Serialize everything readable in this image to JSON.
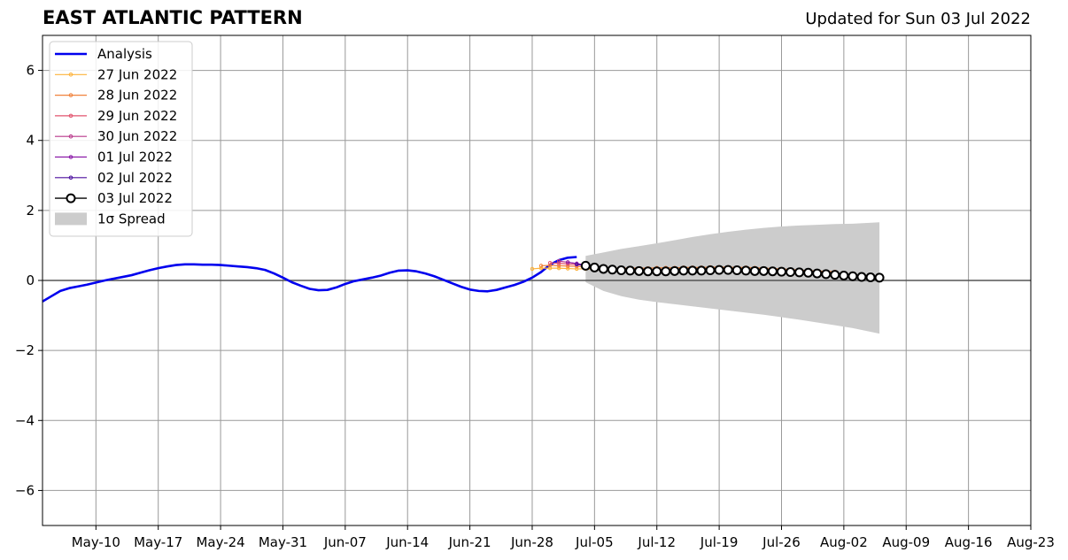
{
  "title": "EAST ATLANTIC PATTERN",
  "subtitle": "Updated for Sun 03 Jul 2022",
  "chart_data": {
    "type": "line",
    "title": "EAST ATLANTIC PATTERN",
    "xlabel": "",
    "ylabel": "",
    "xlim": [
      "2022-05-04",
      "2022-08-23"
    ],
    "ylim": [
      -7,
      7
    ],
    "grid": true,
    "legend_position": "top-left",
    "x_ticks": [
      "May-10",
      "May-17",
      "May-24",
      "May-31",
      "Jun-07",
      "Jun-14",
      "Jun-21",
      "Jun-28",
      "Jul-05",
      "Jul-12",
      "Jul-19",
      "Jul-26",
      "Aug-02",
      "Aug-09",
      "Aug-16",
      "Aug-23"
    ],
    "y_ticks": [
      -6,
      -4,
      -2,
      0,
      2,
      4,
      6
    ],
    "y_tick_labels": [
      "−6",
      "−4",
      "−2",
      "0",
      "2",
      "4",
      "6"
    ],
    "analysis": {
      "name": "Analysis",
      "color": "#0000ee",
      "x": [
        "2022-05-04",
        "2022-05-05",
        "2022-05-06",
        "2022-05-07",
        "2022-05-08",
        "2022-05-09",
        "2022-05-10",
        "2022-05-11",
        "2022-05-12",
        "2022-05-13",
        "2022-05-14",
        "2022-05-15",
        "2022-05-16",
        "2022-05-17",
        "2022-05-18",
        "2022-05-19",
        "2022-05-20",
        "2022-05-21",
        "2022-05-22",
        "2022-05-23",
        "2022-05-24",
        "2022-05-25",
        "2022-05-26",
        "2022-05-27",
        "2022-05-28",
        "2022-05-29",
        "2022-05-30",
        "2022-05-31",
        "2022-06-01",
        "2022-06-02",
        "2022-06-03",
        "2022-06-04",
        "2022-06-05",
        "2022-06-06",
        "2022-06-07",
        "2022-06-08",
        "2022-06-09",
        "2022-06-10",
        "2022-06-11",
        "2022-06-12",
        "2022-06-13",
        "2022-06-14",
        "2022-06-15",
        "2022-06-16",
        "2022-06-17",
        "2022-06-18",
        "2022-06-19",
        "2022-06-20",
        "2022-06-21",
        "2022-06-22",
        "2022-06-23",
        "2022-06-24",
        "2022-06-25",
        "2022-06-26",
        "2022-06-27",
        "2022-06-28",
        "2022-06-29",
        "2022-06-30",
        "2022-07-01",
        "2022-07-02",
        "2022-07-03"
      ],
      "y": [
        -0.6,
        -0.45,
        -0.3,
        -0.22,
        -0.17,
        -0.12,
        -0.06,
        0.0,
        0.05,
        0.1,
        0.15,
        0.22,
        0.29,
        0.35,
        0.4,
        0.44,
        0.46,
        0.46,
        0.45,
        0.45,
        0.44,
        0.42,
        0.4,
        0.38,
        0.35,
        0.3,
        0.2,
        0.08,
        -0.05,
        -0.15,
        -0.24,
        -0.28,
        -0.27,
        -0.2,
        -0.1,
        -0.02,
        0.03,
        0.08,
        0.14,
        0.22,
        0.28,
        0.29,
        0.26,
        0.2,
        0.12,
        0.02,
        -0.08,
        -0.18,
        -0.26,
        -0.3,
        -0.31,
        -0.27,
        -0.2,
        -0.13,
        -0.04,
        0.08,
        0.24,
        0.45,
        0.58,
        0.65,
        0.67
      ]
    },
    "forecasts": [
      {
        "name": "27 Jun 2022",
        "color": "#fdb23a",
        "x": [
          "2022-06-28",
          "2022-06-29",
          "2022-06-30",
          "2022-07-01",
          "2022-07-02",
          "2022-07-03",
          "2022-07-04",
          "2022-07-05",
          "2022-07-06",
          "2022-07-07",
          "2022-07-08",
          "2022-07-09",
          "2022-07-10",
          "2022-07-11",
          "2022-07-12",
          "2022-07-13",
          "2022-07-14",
          "2022-07-15",
          "2022-07-16",
          "2022-07-17",
          "2022-07-18",
          "2022-07-19",
          "2022-07-20",
          "2022-07-21",
          "2022-07-22",
          "2022-07-23",
          "2022-07-24",
          "2022-07-25",
          "2022-07-26",
          "2022-07-27",
          "2022-07-28",
          "2022-07-29",
          "2022-07-30",
          "2022-07-31"
        ],
        "y": [
          0.33,
          0.35,
          0.35,
          0.35,
          0.34,
          0.33,
          0.33,
          0.32,
          0.31,
          0.31,
          0.3,
          0.3,
          0.3,
          0.3,
          0.3,
          0.3,
          0.3,
          0.3,
          0.3,
          0.31,
          0.31,
          0.31,
          0.32,
          0.32,
          0.32,
          0.32,
          0.32,
          0.31,
          0.31,
          0.3,
          0.29,
          0.28,
          0.27,
          0.26
        ]
      },
      {
        "name": "28 Jun 2022",
        "color": "#f0823c",
        "x": [
          "2022-06-29",
          "2022-06-30",
          "2022-07-01",
          "2022-07-02",
          "2022-07-03",
          "2022-07-04",
          "2022-07-05",
          "2022-07-06",
          "2022-07-07",
          "2022-07-08",
          "2022-07-09",
          "2022-07-10",
          "2022-07-11",
          "2022-07-12",
          "2022-07-13",
          "2022-07-14",
          "2022-07-15",
          "2022-07-16",
          "2022-07-17",
          "2022-07-18",
          "2022-07-19",
          "2022-07-20",
          "2022-07-21",
          "2022-07-22",
          "2022-07-23",
          "2022-07-24",
          "2022-07-25",
          "2022-07-26",
          "2022-07-27",
          "2022-07-28",
          "2022-07-29",
          "2022-07-30",
          "2022-07-31",
          "2022-08-01"
        ],
        "y": [
          0.42,
          0.43,
          0.42,
          0.41,
          0.4,
          0.38,
          0.37,
          0.36,
          0.35,
          0.35,
          0.35,
          0.35,
          0.35,
          0.36,
          0.36,
          0.36,
          0.37,
          0.37,
          0.37,
          0.38,
          0.38,
          0.38,
          0.37,
          0.37,
          0.36,
          0.35,
          0.34,
          0.33,
          0.31,
          0.3,
          0.28,
          0.27,
          0.26,
          0.25
        ]
      },
      {
        "name": "29 Jun 2022",
        "color": "#e2546e",
        "x": [
          "2022-06-30",
          "2022-07-01",
          "2022-07-02",
          "2022-07-03",
          "2022-07-04",
          "2022-07-05",
          "2022-07-06",
          "2022-07-07",
          "2022-07-08",
          "2022-07-09",
          "2022-07-10",
          "2022-07-11",
          "2022-07-12",
          "2022-07-13",
          "2022-07-14",
          "2022-07-15",
          "2022-07-16",
          "2022-07-17",
          "2022-07-18",
          "2022-07-19",
          "2022-07-20",
          "2022-07-21",
          "2022-07-22",
          "2022-07-23",
          "2022-07-24",
          "2022-07-25",
          "2022-07-26",
          "2022-07-27",
          "2022-07-28",
          "2022-07-29",
          "2022-07-30",
          "2022-07-31",
          "2022-08-01",
          "2022-08-02"
        ],
        "y": [
          0.5,
          0.49,
          0.47,
          0.45,
          0.42,
          0.39,
          0.36,
          0.34,
          0.32,
          0.31,
          0.3,
          0.3,
          0.3,
          0.31,
          0.31,
          0.32,
          0.32,
          0.32,
          0.32,
          0.32,
          0.32,
          0.31,
          0.3,
          0.29,
          0.28,
          0.27,
          0.26,
          0.24,
          0.23,
          0.22,
          0.21,
          0.2,
          0.19,
          0.18
        ]
      },
      {
        "name": "30 Jun 2022",
        "color": "#b8368a",
        "x": [
          "2022-07-01",
          "2022-07-02",
          "2022-07-03",
          "2022-07-04",
          "2022-07-05",
          "2022-07-06",
          "2022-07-07",
          "2022-07-08",
          "2022-07-09",
          "2022-07-10",
          "2022-07-11",
          "2022-07-12",
          "2022-07-13",
          "2022-07-14",
          "2022-07-15",
          "2022-07-16",
          "2022-07-17",
          "2022-07-18",
          "2022-07-19",
          "2022-07-20",
          "2022-07-21",
          "2022-07-22",
          "2022-07-23",
          "2022-07-24",
          "2022-07-25",
          "2022-07-26",
          "2022-07-27",
          "2022-07-28",
          "2022-07-29",
          "2022-07-30",
          "2022-07-31",
          "2022-08-01",
          "2022-08-02",
          "2022-08-03"
        ],
        "y": [
          0.55,
          0.52,
          0.48,
          0.44,
          0.4,
          0.36,
          0.33,
          0.31,
          0.29,
          0.28,
          0.27,
          0.27,
          0.27,
          0.28,
          0.28,
          0.29,
          0.29,
          0.29,
          0.3,
          0.3,
          0.29,
          0.28,
          0.27,
          0.26,
          0.25,
          0.24,
          0.22,
          0.21,
          0.2,
          0.18,
          0.17,
          0.16,
          0.15,
          0.14
        ]
      },
      {
        "name": "01 Jul 2022",
        "color": "#8b1aa8",
        "x": [
          "2022-07-02",
          "2022-07-03",
          "2022-07-04",
          "2022-07-05",
          "2022-07-06",
          "2022-07-07",
          "2022-07-08",
          "2022-07-09",
          "2022-07-10",
          "2022-07-11",
          "2022-07-12",
          "2022-07-13",
          "2022-07-14",
          "2022-07-15",
          "2022-07-16",
          "2022-07-17",
          "2022-07-18",
          "2022-07-19",
          "2022-07-20",
          "2022-07-21",
          "2022-07-22",
          "2022-07-23",
          "2022-07-24",
          "2022-07-25",
          "2022-07-26",
          "2022-07-27",
          "2022-07-28",
          "2022-07-29",
          "2022-07-30",
          "2022-07-31",
          "2022-08-01",
          "2022-08-02",
          "2022-08-03",
          "2022-08-04"
        ],
        "y": [
          0.52,
          0.48,
          0.44,
          0.4,
          0.36,
          0.33,
          0.3,
          0.28,
          0.27,
          0.26,
          0.26,
          0.26,
          0.27,
          0.27,
          0.28,
          0.28,
          0.29,
          0.29,
          0.29,
          0.28,
          0.27,
          0.26,
          0.25,
          0.24,
          0.23,
          0.22,
          0.2,
          0.19,
          0.18,
          0.16,
          0.15,
          0.14,
          0.13,
          0.12
        ]
      },
      {
        "name": "02 Jul 2022",
        "color": "#4b0f9e",
        "x": [
          "2022-07-03",
          "2022-07-04",
          "2022-07-05",
          "2022-07-06",
          "2022-07-07",
          "2022-07-08",
          "2022-07-09",
          "2022-07-10",
          "2022-07-11",
          "2022-07-12",
          "2022-07-13",
          "2022-07-14",
          "2022-07-15",
          "2022-07-16",
          "2022-07-17",
          "2022-07-18",
          "2022-07-19",
          "2022-07-20",
          "2022-07-21",
          "2022-07-22",
          "2022-07-23",
          "2022-07-24",
          "2022-07-25",
          "2022-07-26",
          "2022-07-27",
          "2022-07-28",
          "2022-07-29",
          "2022-07-30",
          "2022-07-31",
          "2022-08-01",
          "2022-08-02",
          "2022-08-03",
          "2022-08-04",
          "2022-08-05"
        ],
        "y": [
          0.46,
          0.42,
          0.38,
          0.34,
          0.31,
          0.29,
          0.27,
          0.26,
          0.25,
          0.25,
          0.25,
          0.26,
          0.26,
          0.27,
          0.27,
          0.28,
          0.28,
          0.28,
          0.28,
          0.27,
          0.26,
          0.25,
          0.24,
          0.23,
          0.22,
          0.21,
          0.19,
          0.18,
          0.17,
          0.15,
          0.14,
          0.13,
          0.11,
          0.1
        ]
      },
      {
        "name": "03 Jul 2022",
        "color": "#000000",
        "x": [
          "2022-07-04",
          "2022-07-05",
          "2022-07-06",
          "2022-07-07",
          "2022-07-08",
          "2022-07-09",
          "2022-07-10",
          "2022-07-11",
          "2022-07-12",
          "2022-07-13",
          "2022-07-14",
          "2022-07-15",
          "2022-07-16",
          "2022-07-17",
          "2022-07-18",
          "2022-07-19",
          "2022-07-20",
          "2022-07-21",
          "2022-07-22",
          "2022-07-23",
          "2022-07-24",
          "2022-07-25",
          "2022-07-26",
          "2022-07-27",
          "2022-07-28",
          "2022-07-29",
          "2022-07-30",
          "2022-07-31",
          "2022-08-01",
          "2022-08-02",
          "2022-08-03",
          "2022-08-04",
          "2022-08-05",
          "2022-08-06"
        ],
        "y": [
          0.42,
          0.37,
          0.33,
          0.31,
          0.29,
          0.28,
          0.27,
          0.26,
          0.26,
          0.26,
          0.27,
          0.28,
          0.28,
          0.28,
          0.29,
          0.3,
          0.3,
          0.29,
          0.28,
          0.27,
          0.27,
          0.26,
          0.25,
          0.24,
          0.23,
          0.22,
          0.2,
          0.18,
          0.16,
          0.14,
          0.12,
          0.1,
          0.09,
          0.08
        ]
      }
    ],
    "spread": {
      "name": "1σ Spread",
      "color": "#cccccc",
      "x": [
        "2022-07-04",
        "2022-07-06",
        "2022-07-08",
        "2022-07-10",
        "2022-07-12",
        "2022-07-14",
        "2022-07-16",
        "2022-07-18",
        "2022-07-20",
        "2022-07-22",
        "2022-07-24",
        "2022-07-26",
        "2022-07-28",
        "2022-07-30",
        "2022-08-01",
        "2022-08-03",
        "2022-08-06"
      ],
      "upper": [
        0.7,
        0.8,
        0.9,
        0.98,
        1.06,
        1.15,
        1.24,
        1.32,
        1.39,
        1.45,
        1.5,
        1.54,
        1.57,
        1.59,
        1.61,
        1.62,
        1.66
      ],
      "lower": [
        -0.05,
        -0.3,
        -0.45,
        -0.55,
        -0.62,
        -0.68,
        -0.74,
        -0.8,
        -0.86,
        -0.92,
        -0.98,
        -1.05,
        -1.12,
        -1.2,
        -1.28,
        -1.36,
        -1.52
      ]
    }
  }
}
